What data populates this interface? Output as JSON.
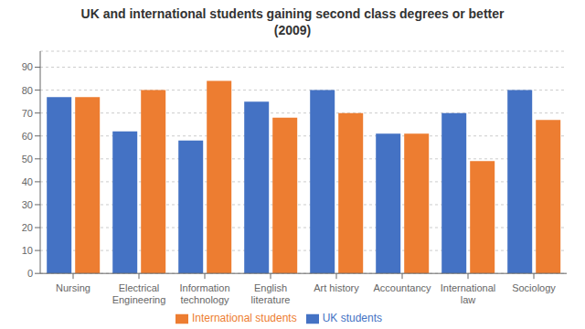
{
  "chart_data": {
    "type": "bar",
    "title": "UK and international students gaining second class degrees or better\n(2009)",
    "categories": [
      "Nursing",
      "Electrical\nEngineering",
      "Information\ntechnology",
      "English\nliterature",
      "Art history",
      "Accountancy",
      "International\nlaw",
      "Sociology"
    ],
    "series": [
      {
        "name": "UK students",
        "color": "#4472C4",
        "values": [
          77,
          62,
          58,
          75,
          80,
          61,
          70,
          80
        ]
      },
      {
        "name": "International students",
        "color": "#ED7D31",
        "values": [
          77,
          80,
          84,
          68,
          70,
          61,
          49,
          67
        ]
      }
    ],
    "ylim": [
      0,
      97
    ],
    "yticks": [
      0,
      10,
      20,
      30,
      40,
      50,
      60,
      70,
      80,
      90
    ],
    "grid": true,
    "legend": "bottom"
  }
}
